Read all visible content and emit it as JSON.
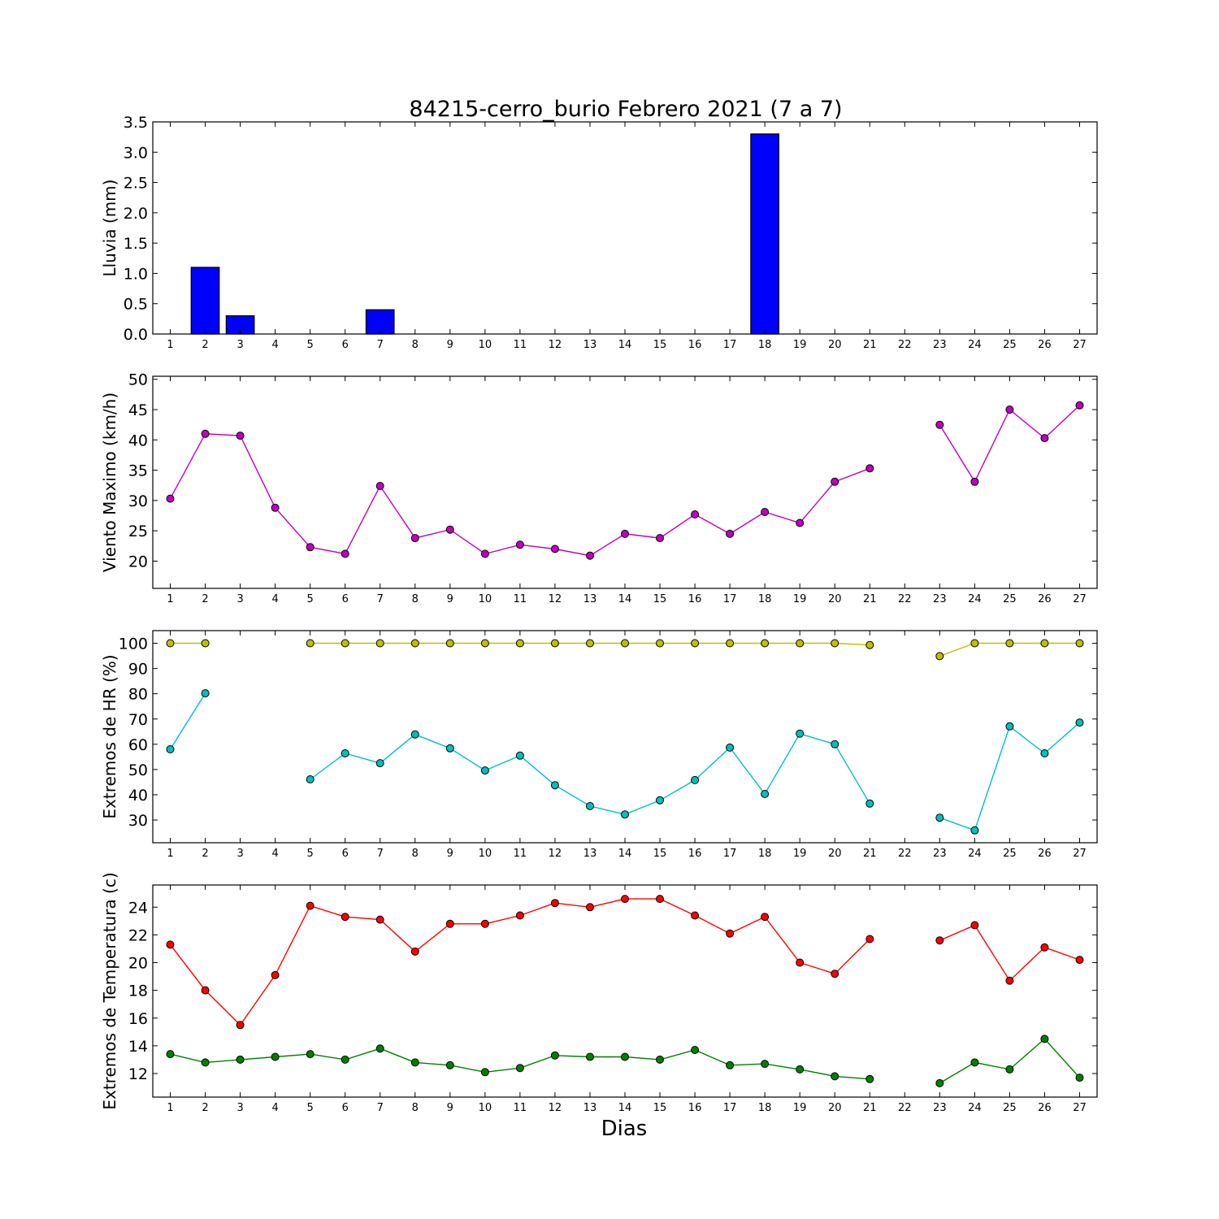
{
  "chart_data": [
    {
      "type": "bar",
      "title": "84215-cerro_burio Febrero 2021  (7 a 7)",
      "ylabel": "Lluvia (mm)",
      "xlabel": "",
      "x": [
        1,
        2,
        3,
        4,
        5,
        6,
        7,
        8,
        9,
        10,
        11,
        12,
        13,
        14,
        15,
        16,
        17,
        18,
        19,
        20,
        21,
        22,
        23,
        24,
        25,
        26,
        27
      ],
      "xlim": [
        0.5,
        27.5
      ],
      "ylim": [
        0,
        3.5
      ],
      "yticks": [
        0.0,
        0.5,
        1.0,
        1.5,
        2.0,
        2.5,
        3.0,
        3.5
      ],
      "ytick_labels": [
        "0.0",
        "0.5",
        "1.0",
        "1.5",
        "2.0",
        "2.5",
        "3.0",
        "3.5"
      ],
      "series": [
        {
          "color": "#0000ff",
          "values": [
            0,
            1.1,
            0.3,
            0,
            0,
            0,
            0.4,
            0,
            0,
            0,
            0,
            0,
            0,
            0,
            0,
            0,
            0,
            3.3,
            0,
            0,
            0,
            null,
            0,
            0,
            0,
            0,
            0
          ]
        }
      ]
    },
    {
      "type": "line",
      "title": "",
      "ylabel": "Viento Maximo (km/h)",
      "xlabel": "",
      "x": [
        1,
        2,
        3,
        4,
        5,
        6,
        7,
        8,
        9,
        10,
        11,
        12,
        13,
        14,
        15,
        16,
        17,
        18,
        19,
        20,
        21,
        22,
        23,
        24,
        25,
        26,
        27
      ],
      "xlim": [
        0.5,
        27.5
      ],
      "ylim": [
        15.5,
        50.5
      ],
      "yticks": [
        20,
        25,
        30,
        35,
        40,
        45,
        50
      ],
      "ytick_labels": [
        "20",
        "25",
        "30",
        "35",
        "40",
        "45",
        "50"
      ],
      "series": [
        {
          "color": "#bf00bf",
          "values": [
            30.3,
            41.0,
            40.7,
            28.8,
            22.3,
            21.2,
            32.4,
            23.8,
            25.2,
            21.2,
            22.7,
            22.0,
            20.9,
            24.5,
            23.8,
            27.7,
            24.5,
            28.1,
            26.3,
            33.1,
            35.3,
            null,
            42.5,
            33.1,
            45.0,
            40.3,
            45.7
          ]
        }
      ]
    },
    {
      "type": "line",
      "title": "",
      "ylabel": "Extremos de HR (%)",
      "xlabel": "",
      "x": [
        1,
        2,
        3,
        4,
        5,
        6,
        7,
        8,
        9,
        10,
        11,
        12,
        13,
        14,
        15,
        16,
        17,
        18,
        19,
        20,
        21,
        22,
        23,
        24,
        25,
        26,
        27
      ],
      "xlim": [
        0.5,
        27.5
      ],
      "ylim": [
        21,
        105
      ],
      "yticks": [
        30,
        40,
        50,
        60,
        70,
        80,
        90,
        100
      ],
      "ytick_labels": [
        "30",
        "40",
        "50",
        "60",
        "70",
        "80",
        "90",
        "100"
      ],
      "series": [
        {
          "color": "#bfbf00",
          "values": [
            100,
            100,
            null,
            null,
            100,
            100,
            100,
            100,
            100,
            100,
            100,
            100,
            100,
            100,
            100,
            100,
            100,
            100,
            100,
            100,
            99.3,
            null,
            94.9,
            100,
            100,
            100,
            100
          ]
        },
        {
          "color": "#00bfbf",
          "values": [
            58.0,
            80.2,
            null,
            null,
            46.1,
            56.4,
            52.5,
            63.9,
            58.4,
            49.6,
            55.5,
            43.8,
            35.5,
            32.2,
            37.8,
            45.8,
            58.7,
            40.3,
            64.2,
            60.0,
            36.5,
            null,
            30.9,
            25.9,
            67.1,
            56.4,
            68.6
          ]
        }
      ]
    },
    {
      "type": "line",
      "title": "",
      "ylabel": "Extremos de Temperatura (c)",
      "xlabel": "Dias",
      "x": [
        1,
        2,
        3,
        4,
        5,
        6,
        7,
        8,
        9,
        10,
        11,
        12,
        13,
        14,
        15,
        16,
        17,
        18,
        19,
        20,
        21,
        22,
        23,
        24,
        25,
        26,
        27
      ],
      "xlim": [
        0.5,
        27.5
      ],
      "ylim": [
        10.3,
        25.6
      ],
      "yticks": [
        12,
        14,
        16,
        18,
        20,
        22,
        24
      ],
      "ytick_labels": [
        "12",
        "14",
        "16",
        "18",
        "20",
        "22",
        "24"
      ],
      "series": [
        {
          "color": "#ff0000",
          "values": [
            21.3,
            18.0,
            15.5,
            19.1,
            24.1,
            23.3,
            23.1,
            20.8,
            22.8,
            22.8,
            23.4,
            24.3,
            24.0,
            24.6,
            24.6,
            23.4,
            22.1,
            23.3,
            20.0,
            19.2,
            21.7,
            null,
            21.6,
            22.7,
            18.7,
            21.1,
            20.2
          ]
        },
        {
          "color": "#008000",
          "values": [
            13.4,
            12.8,
            13.0,
            13.2,
            13.4,
            13.0,
            13.8,
            12.8,
            12.6,
            12.1,
            12.4,
            13.3,
            13.2,
            13.2,
            13.0,
            13.7,
            12.6,
            12.7,
            12.3,
            11.8,
            11.6,
            null,
            11.3,
            12.8,
            12.3,
            14.5,
            11.7
          ]
        }
      ]
    }
  ]
}
